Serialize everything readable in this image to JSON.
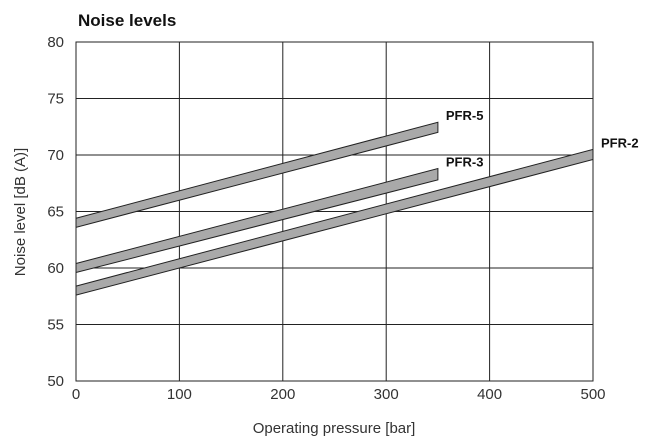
{
  "chart_data": {
    "type": "line",
    "title": "Noise levels",
    "xlabel": "Operating pressure [bar]",
    "ylabel": "Noise level [dB (A)]",
    "xlim": [
      0,
      500
    ],
    "ylim": [
      50,
      80
    ],
    "xticks": [
      0,
      100,
      200,
      300,
      400,
      500
    ],
    "yticks": [
      50,
      55,
      60,
      65,
      70,
      75,
      80
    ],
    "grid": true,
    "legend": "labels at line ends",
    "band_fill": "#a9a9a9",
    "series": [
      {
        "name": "PFR-5",
        "x": [
          0,
          350
        ],
        "lower": [
          63.6,
          72.0
        ],
        "upper": [
          64.4,
          72.9
        ]
      },
      {
        "name": "PFR-3",
        "x": [
          0,
          350
        ],
        "lower": [
          59.6,
          67.8
        ],
        "upper": [
          60.4,
          68.8
        ]
      },
      {
        "name": "PFR-2",
        "x": [
          0,
          500
        ],
        "lower": [
          57.6,
          69.6
        ],
        "upper": [
          58.4,
          70.5
        ]
      }
    ]
  }
}
